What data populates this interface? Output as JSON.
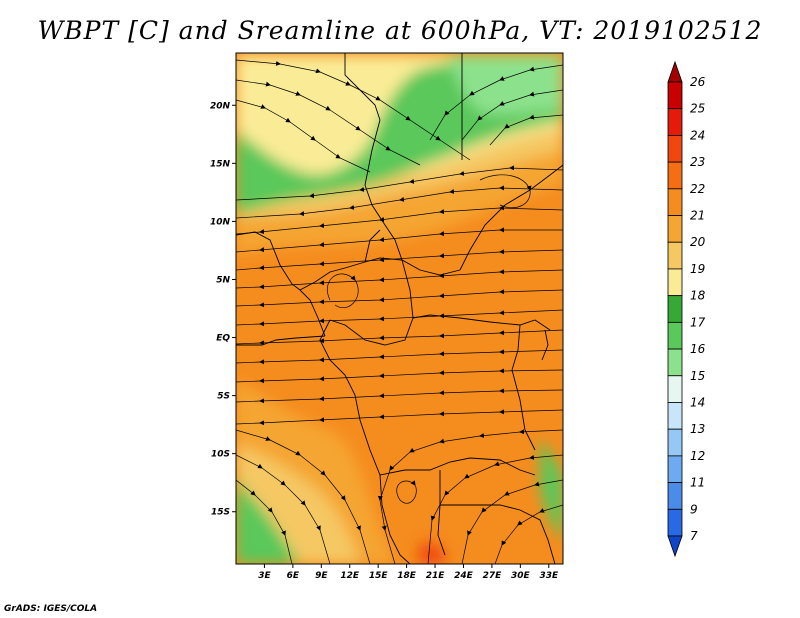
{
  "title": "WBPT [C] and Sreamline at 600hPa, VT: 2019102512",
  "credit": "GrADS: IGES/COLA",
  "map": {
    "lat_ticks": [
      {
        "value": 20,
        "label": "20N"
      },
      {
        "value": 15,
        "label": "15N"
      },
      {
        "value": 10,
        "label": "10N"
      },
      {
        "value": 5,
        "label": "5N"
      },
      {
        "value": 0,
        "label": "EQ"
      },
      {
        "value": -5,
        "label": "5S"
      },
      {
        "value": -10,
        "label": "10S"
      },
      {
        "value": -15,
        "label": "15S"
      }
    ],
    "lon_ticks": [
      {
        "value": 3,
        "label": "3E"
      },
      {
        "value": 6,
        "label": "6E"
      },
      {
        "value": 9,
        "label": "9E"
      },
      {
        "value": 12,
        "label": "12E"
      },
      {
        "value": 15,
        "label": "15E"
      },
      {
        "value": 18,
        "label": "18E"
      },
      {
        "value": 21,
        "label": "21E"
      },
      {
        "value": 24,
        "label": "24E"
      },
      {
        "value": 27,
        "label": "27E"
      },
      {
        "value": 30,
        "label": "30E"
      },
      {
        "value": 33,
        "label": "33E"
      }
    ],
    "lon_range": [
      0,
      34.5
    ],
    "lat_range": [
      -19.5,
      24.5
    ]
  },
  "colorbar": {
    "labels": [
      "26",
      "25",
      "24",
      "23",
      "22",
      "21",
      "20",
      "19",
      "18",
      "17",
      "16",
      "15",
      "14",
      "13",
      "12",
      "11",
      "9",
      "7"
    ],
    "colors": [
      "#a50000",
      "#c80000",
      "#e61a0a",
      "#f0460f",
      "#f56e14",
      "#f58c1e",
      "#f5a532",
      "#f5c864",
      "#faec96",
      "#36a836",
      "#5ac85a",
      "#8ce28c",
      "#e6f6f0",
      "#c8e6fa",
      "#96c8f5",
      "#6eaaf0",
      "#4b8ceb",
      "#2869e6",
      "#0f46c8"
    ]
  }
}
